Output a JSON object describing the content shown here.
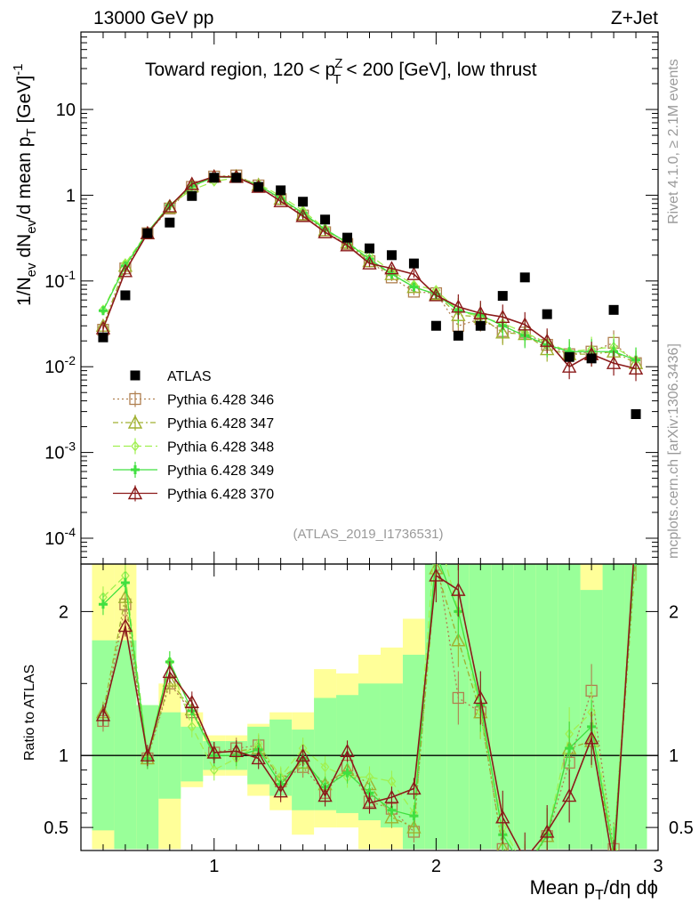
{
  "header": {
    "left": "13000 GeV pp",
    "right": "Z+Jet"
  },
  "side_text": {
    "rivet": "Rivet 4.1.0, ≥ 2.1M events",
    "mcplots": "mcplots.cern.ch [arXiv:1306.3436]"
  },
  "title_parts": {
    "pre": "Toward region, 120 < p",
    "sup": "Z",
    "sub": "T",
    "post": " < 200 [GeV], low thrust"
  },
  "ylabel_parts": {
    "a": "1/N",
    "a_sub": "ev",
    "b": " dN",
    "b_sub": "ev",
    "c": "/d mean p",
    "c_sub": "T",
    "d": " [GeV]",
    "d_sup": "-1"
  },
  "xlabel_parts": {
    "a": "Mean p",
    "a_sub": "T",
    "b": "/dη dϕ"
  },
  "analysis_id": "(ATLAS_2019_I1736531)",
  "ratio_ylabel": "Ratio to ATLAS",
  "colors": {
    "atlas": "#000000",
    "p346": "#b08050",
    "p347": "#a0b030",
    "p348": "#a0f050",
    "p349": "#40e040",
    "p370": "#8b1a1a",
    "band_green": "#99ff99",
    "band_yellow": "#ffff99"
  },
  "chart_data": {
    "type": "scatter",
    "main": {
      "yscale": "log",
      "ylim": [
        5e-05,
        80
      ],
      "xlim": [
        0.4,
        3.0
      ],
      "yticks": [
        {
          "value": 10,
          "label": "10"
        },
        {
          "value": 1,
          "label": "1"
        },
        {
          "value": 0.1,
          "label": "10^-1"
        },
        {
          "value": 0.01,
          "label": "10^-2"
        },
        {
          "value": 0.001,
          "label": "10^-3"
        },
        {
          "value": 0.0001,
          "label": "10^-4"
        }
      ]
    },
    "ratio": {
      "ylim": [
        0.34,
        2.33
      ],
      "yticks": [
        0.5,
        1,
        2
      ],
      "reference": 1
    },
    "xticks": [
      1,
      2,
      3
    ],
    "x": [
      0.5,
      0.6,
      0.7,
      0.8,
      0.9,
      1.0,
      1.1,
      1.2,
      1.3,
      1.4,
      1.5,
      1.6,
      1.7,
      1.8,
      1.9,
      2.0,
      2.1,
      2.2,
      2.3,
      2.4,
      2.5,
      2.6,
      2.7,
      2.8,
      2.9
    ],
    "atlas": [
      0.022,
      0.068,
      0.36,
      0.48,
      0.98,
      1.6,
      1.6,
      1.25,
      1.14,
      0.84,
      0.52,
      0.32,
      0.24,
      0.2,
      0.16,
      0.03,
      0.023,
      0.03,
      0.067,
      0.11,
      0.041,
      0.013,
      0.0125,
      0.046,
      0.0028
    ],
    "series": [
      {
        "name": "Pythia 6.428 346",
        "key": "p346",
        "marker": "square",
        "dash": "2,3",
        "values": [
          0.027,
          0.14,
          0.36,
          0.7,
          1.25,
          1.65,
          1.7,
          1.3,
          0.9,
          0.58,
          0.37,
          0.27,
          0.17,
          0.11,
          0.075,
          0.072,
          0.03,
          0.036,
          0.026,
          0.025,
          0.018,
          0.014,
          0.015,
          0.019,
          0.011
        ]
      },
      {
        "name": "Pythia 6.428 347",
        "key": "p347",
        "marker": "triangle",
        "dash": "6,3,2,3",
        "values": [
          0.03,
          0.15,
          0.36,
          0.72,
          1.27,
          1.65,
          1.66,
          1.32,
          0.91,
          0.6,
          0.39,
          0.28,
          0.17,
          0.12,
          0.085,
          0.07,
          0.04,
          0.038,
          0.025,
          0.024,
          0.016,
          0.014,
          0.014,
          0.015,
          0.011
        ]
      },
      {
        "name": "Pythia 6.428 348",
        "key": "p348",
        "marker": "diamond",
        "dash": "8,4",
        "values": [
          0.046,
          0.16,
          0.37,
          0.78,
          1.15,
          1.45,
          1.6,
          1.35,
          0.98,
          0.66,
          0.41,
          0.27,
          0.2,
          0.13,
          0.09,
          0.078,
          0.045,
          0.038,
          0.032,
          0.025,
          0.019,
          0.015,
          0.016,
          0.017,
          0.012
        ]
      },
      {
        "name": "Pythia 6.428 349",
        "key": "p349",
        "marker": "cross",
        "dash": "",
        "values": [
          0.045,
          0.15,
          0.37,
          0.76,
          1.28,
          1.62,
          1.62,
          1.3,
          0.92,
          0.62,
          0.4,
          0.28,
          0.18,
          0.12,
          0.085,
          0.07,
          0.045,
          0.04,
          0.03,
          0.023,
          0.018,
          0.015,
          0.015,
          0.015,
          0.012
        ]
      },
      {
        "name": "Pythia 6.428 370",
        "key": "p370",
        "marker": "triangle",
        "dash": "",
        "values": [
          0.028,
          0.13,
          0.36,
          0.74,
          1.35,
          1.65,
          1.63,
          1.25,
          0.85,
          0.57,
          0.37,
          0.26,
          0.16,
          0.14,
          0.12,
          0.068,
          0.05,
          0.042,
          0.038,
          0.031,
          0.02,
          0.01,
          0.014,
          0.011,
          0.0095
        ]
      }
    ],
    "bands": [
      {
        "g": [
          0.48,
          1.8
        ],
        "y": [
          0.35,
          2.33
        ]
      },
      {
        "g": [
          0.35,
          1.8
        ],
        "y": [
          0.35,
          2.33
        ]
      },
      {
        "g": [
          0.35,
          1.35
        ],
        "y": [
          0.35,
          1.35
        ]
      },
      {
        "g": [
          0.7,
          1.3
        ],
        "y": [
          0.35,
          1.5
        ]
      },
      {
        "g": [
          0.82,
          1.2
        ],
        "y": [
          0.78,
          1.3
        ]
      },
      {
        "g": [
          0.9,
          1.1
        ],
        "y": [
          0.86,
          1.14
        ]
      },
      {
        "g": [
          0.9,
          1.1
        ],
        "y": [
          0.86,
          1.14
        ]
      },
      {
        "g": [
          0.8,
          1.2
        ],
        "y": [
          0.72,
          1.22
        ]
      },
      {
        "g": [
          0.72,
          1.25
        ],
        "y": [
          0.62,
          1.3
        ]
      },
      {
        "g": [
          0.62,
          1.18
        ],
        "y": [
          0.45,
          1.3
        ]
      },
      {
        "g": [
          0.62,
          1.4
        ],
        "y": [
          0.5,
          1.6
        ]
      },
      {
        "g": [
          0.6,
          1.42
        ],
        "y": [
          0.5,
          1.57
        ]
      },
      {
        "g": [
          0.55,
          1.5
        ],
        "y": [
          0.35,
          1.7
        ]
      },
      {
        "g": [
          0.5,
          1.5
        ],
        "y": [
          0.35,
          1.75
        ]
      },
      {
        "g": [
          0.35,
          1.7
        ],
        "y": [
          0.35,
          1.95
        ]
      },
      {
        "g": [
          0.35,
          2.33
        ],
        "y": [
          0.35,
          2.33
        ]
      },
      {
        "g": [
          0.35,
          2.33
        ],
        "y": [
          0.35,
          2.33
        ]
      },
      {
        "g": [
          0.35,
          2.33
        ],
        "y": [
          0.35,
          2.33
        ]
      },
      {
        "g": [
          0.35,
          2.33
        ],
        "y": [
          0.35,
          2.33
        ]
      },
      {
        "g": [
          0.35,
          2.33
        ],
        "y": [
          0.35,
          2.33
        ]
      },
      {
        "g": [
          0.35,
          2.33
        ],
        "y": [
          0.35,
          2.33
        ]
      },
      {
        "g": [
          0.35,
          2.33
        ],
        "y": [
          0.35,
          2.33
        ]
      },
      {
        "g": [
          0.35,
          2.15
        ],
        "y": [
          0.35,
          2.33
        ]
      },
      {
        "g": [
          0.35,
          2.33
        ],
        "y": [
          0.35,
          2.33
        ]
      },
      {
        "g": [
          0.35,
          2.33
        ],
        "y": [
          0.35,
          2.33
        ]
      }
    ],
    "ratios": {
      "p346": [
        1.24,
        2.05,
        0.98,
        1.5,
        1.3,
        1.02,
        1.05,
        1.07,
        0.82,
        0.92,
        0.74,
        0.93,
        0.68,
        0.63,
        0.47,
        2.4,
        1.4,
        1.3,
        0.35,
        0.2,
        0.44,
        0.95,
        1.45,
        0.35,
        2.5
      ],
      "p347": [
        1.3,
        2.1,
        0.98,
        1.52,
        1.32,
        1.02,
        1.03,
        1.05,
        0.84,
        0.95,
        0.8,
        0.9,
        0.8,
        0.57,
        0.5,
        2.3,
        1.8,
        1.3,
        0.36,
        0.22,
        0.44,
        1.05,
        1.1,
        0.32,
        2.4
      ],
      "p348": [
        2.1,
        2.25,
        1.0,
        1.65,
        1.2,
        0.9,
        0.98,
        1.08,
        0.85,
        1.05,
        0.92,
        0.85,
        0.85,
        0.82,
        0.6,
        2.6,
        2.0,
        1.3,
        0.5,
        0.22,
        0.45,
        1.15,
        1.3,
        0.34,
        2.6
      ],
      "p349": [
        2.05,
        2.2,
        0.98,
        1.65,
        1.31,
        1.0,
        1.0,
        1.04,
        0.8,
        0.98,
        0.78,
        0.88,
        0.74,
        0.62,
        0.58,
        2.4,
        2.0,
        1.35,
        0.45,
        0.2,
        0.45,
        1.05,
        1.2,
        0.32,
        2.5
      ],
      "p370": [
        1.28,
        1.9,
        1.0,
        1.58,
        1.37,
        1.02,
        1.03,
        0.98,
        0.75,
        1.0,
        0.72,
        1.03,
        0.67,
        0.71,
        0.77,
        2.25,
        2.15,
        1.4,
        0.57,
        0.28,
        0.47,
        0.72,
        1.12,
        0.23,
        2.6
      ]
    },
    "legend": {
      "placement": "left-middle",
      "atlas_label": "ATLAS"
    }
  }
}
